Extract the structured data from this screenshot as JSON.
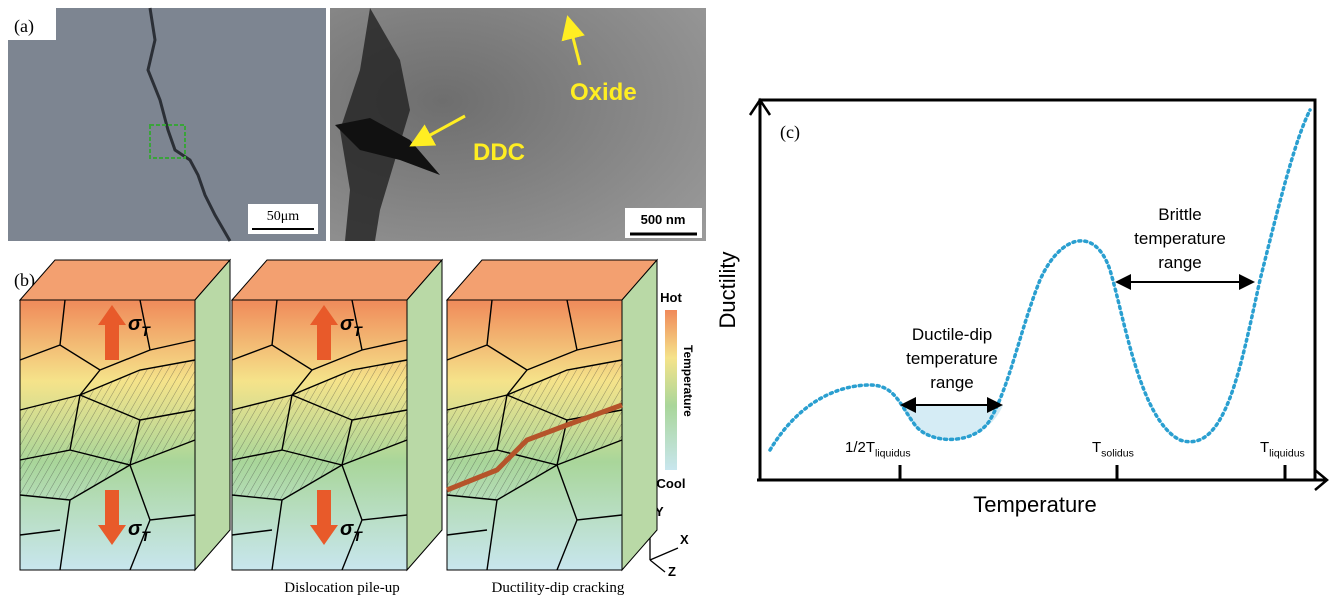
{
  "panel_a": {
    "label": "(a)",
    "scale_left": "50μm",
    "scale_right": "500 nm",
    "oxide": "Oxide",
    "ddc": "DDC"
  },
  "panel_b": {
    "label": "(b)",
    "stress_labels": [
      {
        "base": "σ",
        "sub": "T"
      },
      {
        "base": "σ",
        "sub": "T"
      },
      {
        "base": "σ",
        "sub": "T"
      },
      {
        "base": "σ",
        "sub": "T"
      }
    ],
    "colorbar": {
      "hot": "Hot",
      "title": "Temperature",
      "cool": "Cool"
    },
    "axes": {
      "y": "Y",
      "x": "X",
      "z": "Z"
    },
    "captions": [
      "Dislocation pile-up",
      "Ductility-dip cracking"
    ]
  },
  "panel_c": {
    "label": "(c)",
    "y_title": "Ductility",
    "x_title": "Temperature",
    "brittle": [
      "Brittle",
      "temperature",
      "range"
    ],
    "ductile": [
      "Ductile-dip",
      "temperature",
      "range"
    ],
    "ticks": [
      {
        "base": "1/2T",
        "sub": "liquidus"
      },
      {
        "base": "T",
        "sub": "solidus"
      },
      {
        "base": "T",
        "sub": "liquidus"
      }
    ]
  }
}
